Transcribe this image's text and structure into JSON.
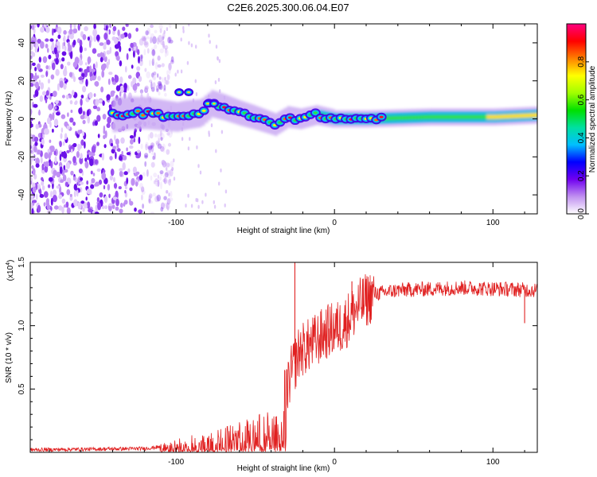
{
  "title": "C2E6.2025.300.06.04.E07",
  "chart_data": [
    {
      "type": "heatmap",
      "name": "spectrogram",
      "xlabel": "Height of straight line (km)",
      "ylabel": "Frequency (Hz)",
      "xlim": [
        -192,
        128
      ],
      "ylim": [
        -50,
        50
      ],
      "xticks": [
        -100,
        0,
        100
      ],
      "xtick_labels": [
        "-100",
        "0",
        "100"
      ],
      "yticks": [
        40,
        20,
        0,
        -20,
        -40
      ],
      "ytick_labels": [
        "40",
        "20",
        "0",
        "-20",
        "-40"
      ],
      "noise_region_x": [
        -192,
        -107
      ],
      "ridge": [
        {
          "x": -140,
          "y": 2
        },
        {
          "x": -130,
          "y": 3
        },
        {
          "x": -120,
          "y": 3
        },
        {
          "x": -110,
          "y": 2
        },
        {
          "x": -100,
          "y": 1
        },
        {
          "x": -95,
          "y": 2
        },
        {
          "x": -85,
          "y": 3
        },
        {
          "x": -78,
          "y": 8
        },
        {
          "x": -70,
          "y": 6
        },
        {
          "x": -60,
          "y": 3
        },
        {
          "x": -52,
          "y": 1
        },
        {
          "x": -45,
          "y": -1
        },
        {
          "x": -38,
          "y": -3
        },
        {
          "x": -30,
          "y": 1
        },
        {
          "x": -22,
          "y": 0
        },
        {
          "x": -12,
          "y": 2
        },
        {
          "x": 0,
          "y": 0
        },
        {
          "x": 20,
          "y": 0
        },
        {
          "x": 60,
          "y": 1
        },
        {
          "x": 100,
          "y": 1
        },
        {
          "x": 128,
          "y": 2
        }
      ],
      "side_band": {
        "x": [
          -98,
          -92,
          -80,
          -76
        ],
        "y": 14
      },
      "colorbar": {
        "label": "Normalized spectral amplitude",
        "range": [
          0,
          1
        ],
        "ticks": [
          "0.0",
          "0.2",
          "0.4",
          "0.6",
          "0.8"
        ],
        "colors": [
          "#ffffff",
          "#c090f0",
          "#7000f0",
          "#0000ff",
          "#00c0ff",
          "#00e0a0",
          "#00e000",
          "#a0ff00",
          "#ffff00",
          "#ff8000",
          "#ff0000",
          "#ff0080"
        ]
      }
    },
    {
      "type": "line",
      "name": "snr",
      "xlabel": "Height of straight line (km)",
      "ylabel": "SNR (10 * v/v)",
      "yscale_label": "(x10^4)",
      "yscale_base": "(x10",
      "yscale_exp": "4",
      "xlim": [
        -192,
        128
      ],
      "ylim": [
        0,
        1.5
      ],
      "xticks": [
        -100,
        0,
        100
      ],
      "xtick_labels": [
        "-100",
        "0",
        "100"
      ],
      "yticks": [
        0.5,
        1.0,
        1.5
      ],
      "ytick_labels": [
        "0.5",
        "1.0",
        "1.5"
      ],
      "color": "#e02020",
      "envelope": [
        {
          "x": -192,
          "y": 0.02
        },
        {
          "x": -120,
          "y": 0.03
        },
        {
          "x": -105,
          "y": 0.05
        },
        {
          "x": -95,
          "y": 0.08
        },
        {
          "x": -80,
          "y": 0.1
        },
        {
          "x": -60,
          "y": 0.15
        },
        {
          "x": -45,
          "y": 0.2
        },
        {
          "x": -35,
          "y": 0.22
        },
        {
          "x": -28,
          "y": 0.6
        },
        {
          "x": -22,
          "y": 0.8
        },
        {
          "x": -15,
          "y": 0.85
        },
        {
          "x": -5,
          "y": 0.95
        },
        {
          "x": 5,
          "y": 1.0
        },
        {
          "x": 15,
          "y": 1.15
        },
        {
          "x": 25,
          "y": 1.25
        },
        {
          "x": 40,
          "y": 1.28
        },
        {
          "x": 80,
          "y": 1.3
        },
        {
          "x": 128,
          "y": 1.28
        }
      ],
      "spikes": [
        {
          "x": -25,
          "y": 1.5
        },
        {
          "x": 11,
          "y": 1.35
        },
        {
          "x": 120,
          "y": 1.02
        }
      ]
    }
  ]
}
